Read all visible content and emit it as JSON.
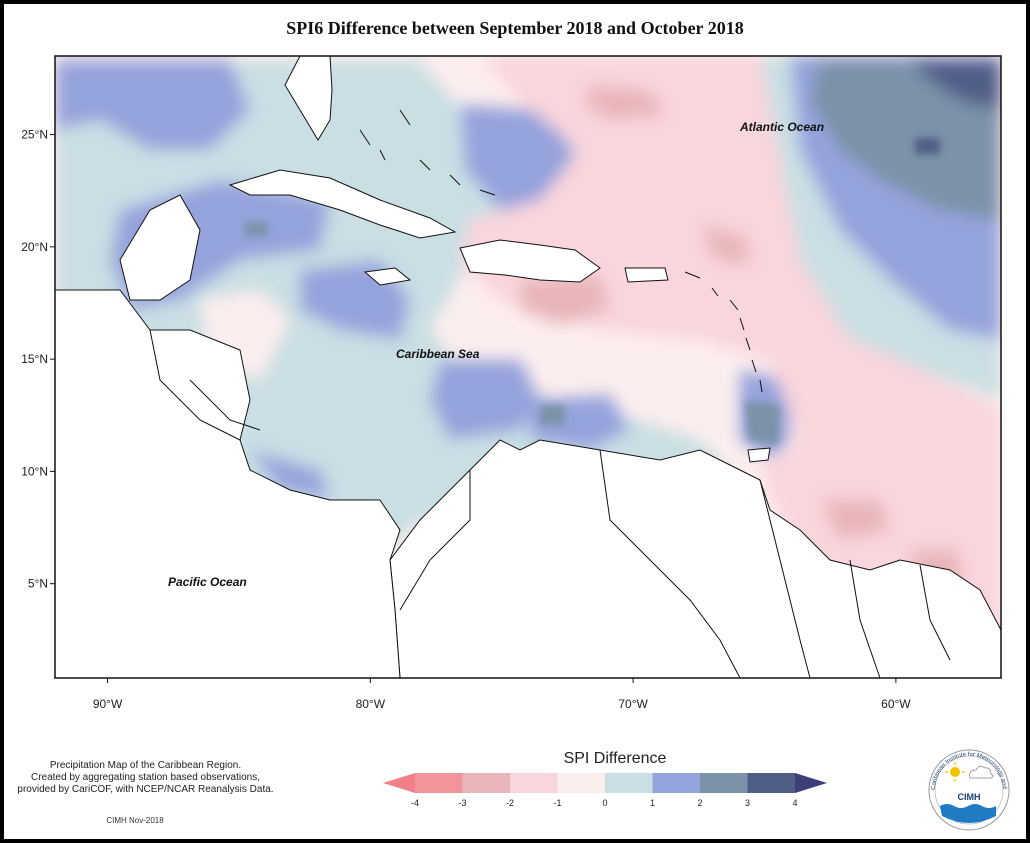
{
  "title": "SPI6 Difference between September 2018 and October 2018",
  "map": {
    "lon_range": [
      -92,
      -56
    ],
    "lat_range": [
      0.8,
      28.5
    ],
    "lat_ticks": [
      {
        "value": 25,
        "label": "25°N"
      },
      {
        "value": 20,
        "label": "20°N"
      },
      {
        "value": 15,
        "label": "15°N"
      },
      {
        "value": 10,
        "label": "10°N"
      },
      {
        "value": 5,
        "label": "5°N"
      }
    ],
    "lon_ticks": [
      {
        "value": -90,
        "label": "90°W"
      },
      {
        "value": -80,
        "label": "80°W"
      },
      {
        "value": -70,
        "label": "70°W"
      },
      {
        "value": -60,
        "label": "60°W"
      }
    ],
    "ocean_labels": [
      "Atlantic Ocean",
      "Caribbean Sea",
      "Pacific Ocean"
    ]
  },
  "legend": {
    "title": "SPI Difference",
    "ticks": [
      "-4",
      "-3",
      "-2",
      "-1",
      "0",
      "1",
      "2",
      "3",
      "4"
    ],
    "colors": [
      "#f2949a",
      "#e8b6b9",
      "#f9d5dc",
      "#fdeeee",
      "#c9dfe4",
      "#95a3dc",
      "#7b92a8",
      "#4f5d87"
    ],
    "low_arrow_color": "#f07f87",
    "high_arrow_color": "#3c3f78"
  },
  "credits": {
    "line1": "Precipitation Map of the Caribbean Region.",
    "line2": "Created by aggregating station based observations,",
    "line3": "provided by CariCOF, with NCEP/NCAR Reanalysis Data.",
    "footer": "CIMH Nov-2018"
  },
  "logo": {
    "text": "CIMH",
    "ring_text": "Caribbean Institute for Meteorology and Hydrology",
    "icon": "cimh-logo-icon"
  }
}
